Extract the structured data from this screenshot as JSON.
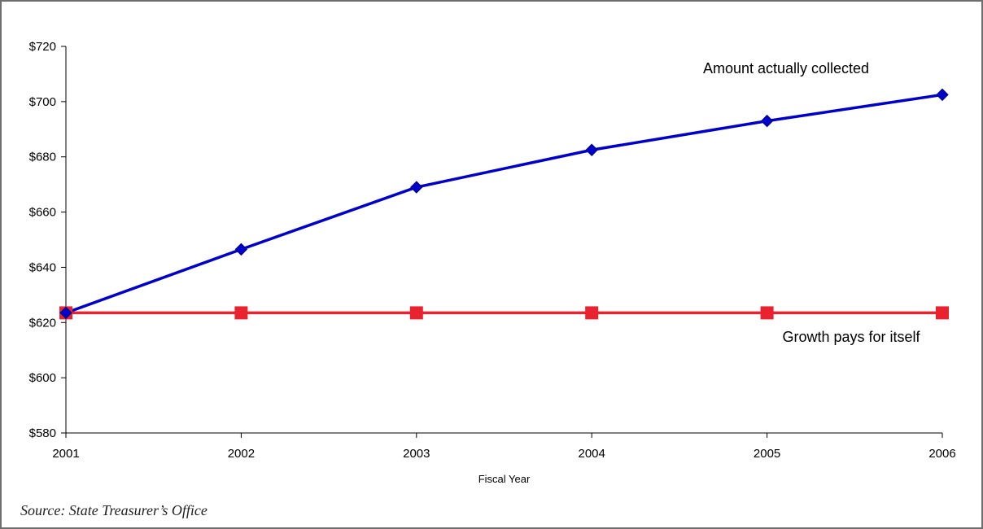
{
  "chart_data": {
    "type": "line",
    "title": "",
    "xlabel": "Fiscal Year",
    "ylabel": "",
    "categories": [
      "2001",
      "2002",
      "2003",
      "2004",
      "2005",
      "2006"
    ],
    "ylim": [
      580,
      720
    ],
    "y_ticks": [
      580,
      600,
      620,
      640,
      660,
      680,
      700,
      720
    ],
    "y_tick_labels": [
      "$580",
      "$600",
      "$620",
      "$640",
      "$660",
      "$680",
      "$700",
      "$720"
    ],
    "grid": false,
    "legend": "none",
    "series": [
      {
        "name": "Amount actually collected",
        "values": [
          623.5,
          646.5,
          669,
          682.5,
          693,
          702.5
        ],
        "color": "#0000cc",
        "marker": "diamond"
      },
      {
        "name": "Growth pays for itself",
        "values": [
          623.5,
          623.5,
          623.5,
          623.5,
          623.5,
          623.5
        ],
        "color": "#e8232f",
        "marker": "square"
      }
    ]
  },
  "source_note": "Source: State Treasurer’s Office"
}
